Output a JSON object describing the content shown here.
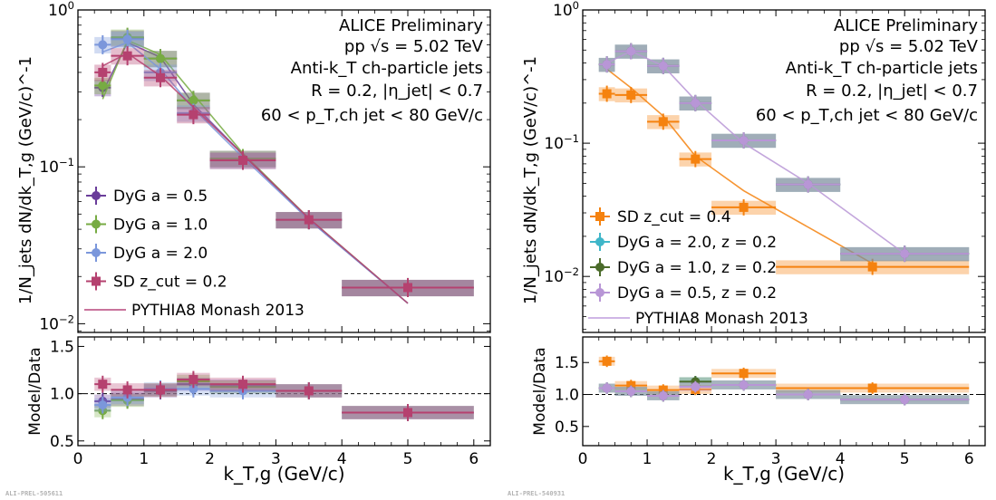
{
  "chart_data": [
    {
      "type": "scatter",
      "panel": "left",
      "xlabel": "k_T,g (GeV/c)",
      "ylabel": "1/N_jets dN/dk_T,g (GeV/c)^-1",
      "ratio_ylabel": "Model/Data",
      "x_ticks": [
        "0",
        "1",
        "2",
        "3",
        "4",
        "5",
        "6"
      ],
      "y_ticks": [
        "10^0",
        "10^-1",
        "10^-2"
      ],
      "ratio_ticks": [
        "0.5",
        "1.0",
        "1.5"
      ],
      "xlim": [
        0,
        6.25
      ],
      "ylim": [
        0.0088,
        1.0
      ],
      "ratio_ylim": [
        0.45,
        1.6
      ],
      "yscale": "log",
      "annotations": [
        "ALICE Preliminary",
        "pp √s = 5.02 TeV",
        "Anti-k_T ch-particle jets",
        "R = 0.2, |η_jet| < 0.7",
        "60 < p_T,ch jet < 80 GeV/c"
      ],
      "footer": "ALI-PREL-505611",
      "legend_location": "lower-left",
      "series": [
        {
          "name": "DyG a = 0.5",
          "color": "#6a3d9a",
          "marker": "circle",
          "x": [
            0.375,
            0.75,
            1.25,
            1.75,
            2.5,
            3.5,
            5.0
          ],
          "xerr": [
            0.125,
            0.25,
            0.25,
            0.25,
            0.5,
            0.5,
            1.0
          ],
          "y": [
            0.32,
            0.66,
            0.49,
            0.265,
            0.113,
            0.046,
            0.017
          ],
          "model": [
            0.3,
            0.62,
            0.5,
            0.25,
            0.12,
            0.046,
            0.0135
          ],
          "ratio": [
            0.92,
            0.94,
            1.03,
            1.1,
            1.08,
            1.03,
            0.8
          ]
        },
        {
          "name": "DyG a = 1.0",
          "color": "#77ab43",
          "marker": "circle",
          "x": [
            0.375,
            0.75,
            1.25,
            1.75,
            2.5,
            3.5,
            5.0
          ],
          "xerr": [
            0.125,
            0.25,
            0.25,
            0.25,
            0.5,
            0.5,
            1.0
          ],
          "y": [
            0.33,
            0.67,
            0.49,
            0.265,
            0.113,
            0.046,
            0.017
          ],
          "model": [
            0.27,
            0.64,
            0.52,
            0.29,
            0.122,
            0.047,
            0.0135
          ],
          "ratio": [
            0.82,
            0.93,
            1.04,
            1.13,
            1.07,
            1.03,
            0.8
          ]
        },
        {
          "name": "DyG a = 2.0",
          "color": "#7b97db",
          "marker": "circle",
          "x": [
            0.375,
            0.75,
            1.25,
            1.75,
            2.5,
            3.5,
            5.0
          ],
          "xerr": [
            0.125,
            0.25,
            0.25,
            0.25,
            0.5,
            0.5,
            1.0
          ],
          "y": [
            0.6,
            0.65,
            0.4,
            0.22,
            0.11,
            0.046,
            0.017
          ],
          "model": [
            0.54,
            0.62,
            0.42,
            0.235,
            0.115,
            0.046,
            0.0135
          ],
          "ratio": [
            0.88,
            0.96,
            1.05,
            1.05,
            1.03,
            1.03,
            0.8
          ]
        },
        {
          "name": "SD z_cut = 0.2",
          "color": "#b5416f",
          "marker": "square",
          "x": [
            0.375,
            0.75,
            1.25,
            1.75,
            2.5,
            3.5,
            5.0
          ],
          "xerr": [
            0.125,
            0.25,
            0.25,
            0.25,
            0.5,
            0.5,
            1.0
          ],
          "y": [
            0.4,
            0.51,
            0.37,
            0.215,
            0.11,
            0.046,
            0.017
          ],
          "model": [
            0.44,
            0.53,
            0.38,
            0.24,
            0.12,
            0.047,
            0.0135
          ],
          "ratio": [
            1.1,
            1.04,
            1.04,
            1.15,
            1.1,
            1.03,
            0.8
          ]
        },
        {
          "name": "PYTHIA8 Monash 2013",
          "color": "#c9739c",
          "marker": "line"
        }
      ]
    },
    {
      "type": "scatter",
      "panel": "right",
      "xlabel": "k_T,g (GeV/c)",
      "ylabel": "1/N_jets dN/dk_T,g (GeV/c)^-1",
      "ratio_ylabel": "Model/Data",
      "x_ticks": [
        "0",
        "1",
        "2",
        "3",
        "4",
        "5",
        "6"
      ],
      "y_ticks": [
        "10^0",
        "10^-1",
        "10^-2"
      ],
      "ratio_ticks": [
        "0.5",
        "1.0",
        "1.5"
      ],
      "xlim": [
        0,
        6.25
      ],
      "ylim": [
        0.0038,
        1.0
      ],
      "ratio_ylim": [
        0.2,
        1.9
      ],
      "yscale": "log",
      "annotations": [
        "ALICE Preliminary",
        "pp √s = 5.02 TeV",
        "Anti-k_T ch-particle jets",
        "R = 0.2, |η_jet| < 0.7",
        "60 < p_T,ch jet < 80 GeV/c"
      ],
      "footer": "ALI-PREL-540931",
      "legend_location": "lower-left",
      "series": [
        {
          "name": "SD z_cut = 0.4",
          "color": "#f5820f",
          "marker": "square",
          "x": [
            0.375,
            0.75,
            1.25,
            1.75,
            2.5,
            4.5
          ],
          "xerr": [
            0.125,
            0.25,
            0.25,
            0.25,
            0.5,
            1.5
          ],
          "y": [
            0.235,
            0.23,
            0.145,
            0.076,
            0.033,
            0.0118
          ],
          "model": [
            0.36,
            0.26,
            0.16,
            0.08,
            0.044,
            0.0125
          ],
          "ratio": [
            1.52,
            1.14,
            1.07,
            1.08,
            1.33,
            1.1
          ]
        },
        {
          "name": "DyG a = 2.0, z = 0.2",
          "color": "#3fb6c9",
          "marker": "circle",
          "x": [
            0.375,
            0.75,
            1.25,
            1.75,
            2.5,
            3.5,
            5.0
          ],
          "xerr": [
            0.125,
            0.25,
            0.25,
            0.25,
            0.5,
            0.5,
            1.0
          ],
          "y": [
            0.39,
            0.49,
            0.38,
            0.2,
            0.105,
            0.049,
            0.0148
          ],
          "ratio": [
            1.1,
            1.05,
            0.98,
            1.2,
            1.15,
            1.0,
            0.92
          ]
        },
        {
          "name": "DyG a = 1.0, z = 0.2",
          "color": "#4b6b2a",
          "marker": "circle",
          "x": [
            0.375,
            0.75,
            1.25,
            1.75,
            2.5,
            3.5,
            5.0
          ],
          "xerr": [
            0.125,
            0.25,
            0.25,
            0.25,
            0.5,
            0.5,
            1.0
          ],
          "y": [
            0.39,
            0.49,
            0.38,
            0.2,
            0.105,
            0.049,
            0.0148
          ],
          "ratio": [
            1.1,
            1.05,
            0.98,
            1.2,
            1.15,
            1.0,
            0.92
          ]
        },
        {
          "name": "DyG a = 0.5, z = 0.2",
          "color": "#b896d6",
          "marker": "circle",
          "x": [
            0.375,
            0.75,
            1.25,
            1.75,
            2.5,
            3.5,
            5.0
          ],
          "xerr": [
            0.125,
            0.25,
            0.25,
            0.25,
            0.5,
            0.5,
            1.0
          ],
          "y": [
            0.39,
            0.49,
            0.38,
            0.2,
            0.105,
            0.049,
            0.0148
          ],
          "model": [
            0.4,
            0.49,
            0.38,
            0.21,
            0.1,
            0.05,
            0.0148
          ],
          "ratio": [
            1.1,
            1.05,
            0.98,
            1.12,
            1.15,
            1.0,
            0.92
          ]
        },
        {
          "name": "PYTHIA8 Monash 2013",
          "color": "#cfb6e6",
          "marker": "line"
        }
      ]
    }
  ]
}
